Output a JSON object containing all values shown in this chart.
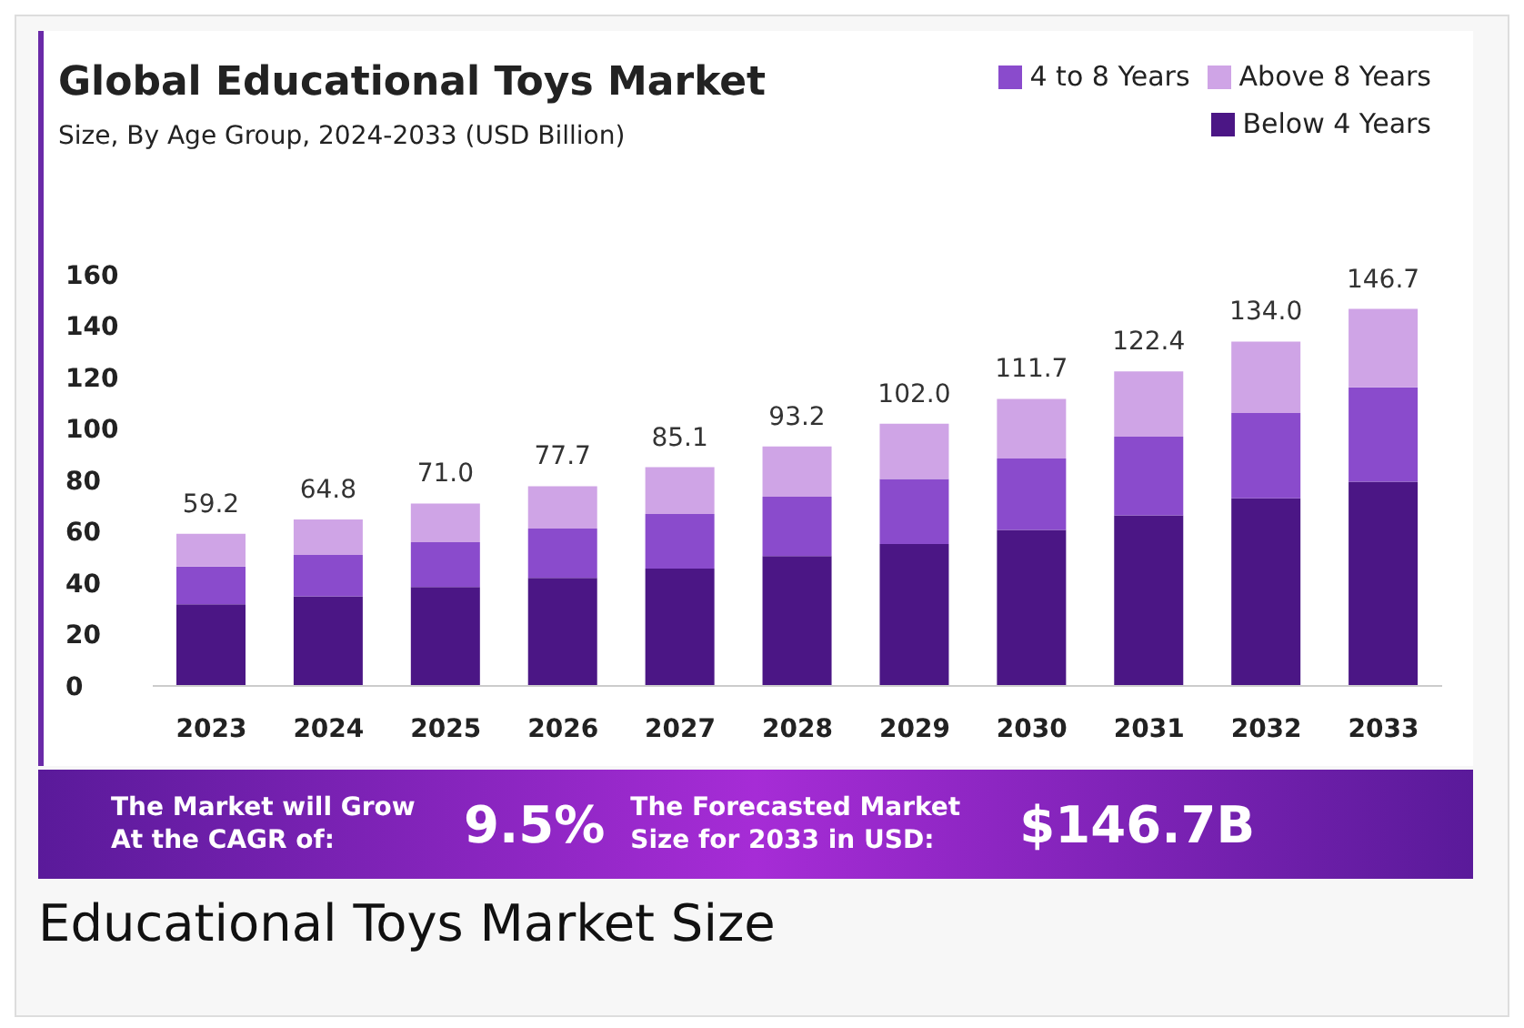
{
  "chart_data": {
    "type": "bar",
    "title": "Global Educational Toys Market",
    "subtitle": "Size, By Age Group, 2024-2033 (USD Billion)",
    "categories": [
      "2023",
      "2024",
      "2025",
      "2026",
      "2027",
      "2028",
      "2029",
      "2030",
      "2031",
      "2032",
      "2033"
    ],
    "series": [
      {
        "name": "Below 4 Years",
        "color": "#4b1685",
        "values": [
          31.8,
          34.9,
          38.5,
          42.0,
          45.7,
          50.5,
          55.2,
          60.7,
          66.4,
          73.0,
          79.5
        ]
      },
      {
        "name": "4 to 8 Years",
        "color": "#8a4bcc",
        "values": [
          14.7,
          16.1,
          17.4,
          19.2,
          21.2,
          23.1,
          25.3,
          27.8,
          30.6,
          33.2,
          36.7
        ]
      },
      {
        "name": "Above 8 Years",
        "color": "#cfa4e6",
        "values": [
          12.7,
          13.8,
          15.1,
          16.5,
          18.2,
          19.6,
          21.5,
          23.2,
          25.4,
          27.8,
          30.5
        ]
      }
    ],
    "stacked": true,
    "totals": [
      "59.2",
      "64.8",
      "71.0",
      "77.7",
      "85.1",
      "93.2",
      "102.0",
      "111.7",
      "122.4",
      "134.0",
      "146.7"
    ],
    "ylim": [
      0,
      160
    ],
    "yticks": [
      0,
      20,
      40,
      60,
      80,
      100,
      120,
      140,
      160
    ],
    "grid": false,
    "legend": "top right",
    "annotations": [
      "The Market will Grow At the CAGR of:",
      "9.5%",
      "The Forecasted Market Size for 2033 in USD:",
      "$146.7B",
      "Educational Toys Market Size"
    ]
  }
}
